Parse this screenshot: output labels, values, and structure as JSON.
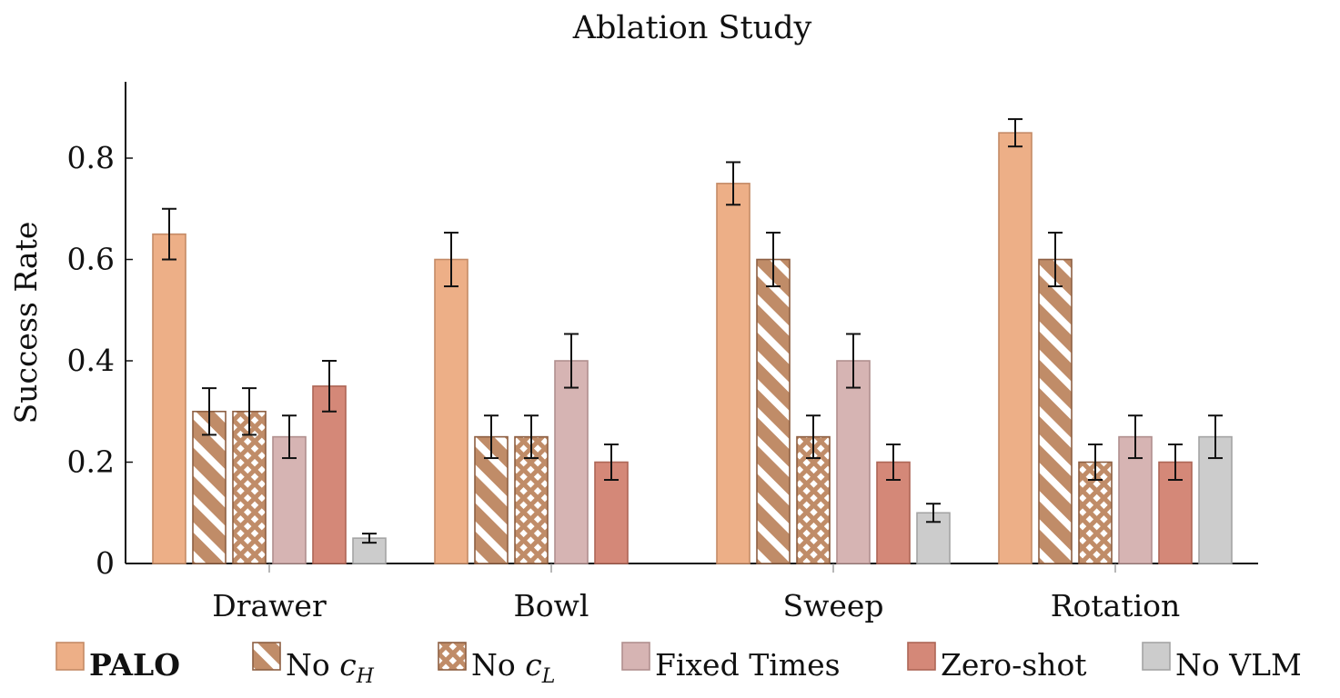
{
  "chart_data": {
    "type": "bar",
    "title": "Ablation Study",
    "xlabel": "",
    "ylabel": "Success Rate",
    "ylim": [
      0,
      0.92
    ],
    "yticks": [
      0,
      0.2,
      0.4,
      0.6,
      0.8
    ],
    "ytick_labels": [
      "0",
      "0.2",
      "0.4",
      "0.6",
      "0.8"
    ],
    "grid": false,
    "legend_position": "bottom",
    "categories": [
      "Drawer",
      "Bowl",
      "Sweep",
      "Rotation"
    ],
    "series": [
      {
        "name": "PALO",
        "color": "#edaf87",
        "stroke": "#c48a66",
        "pattern": "solid",
        "values": [
          0.65,
          0.6,
          0.75,
          0.85
        ],
        "errors": [
          0.05,
          0.053,
          0.042,
          0.027
        ]
      },
      {
        "name": "No c_H",
        "color": "#c08c68",
        "stroke": "#8d5f42",
        "pattern": "diagonal-stripes",
        "values": [
          0.3,
          0.25,
          0.6,
          0.6
        ],
        "errors": [
          0.046,
          0.042,
          0.053,
          0.053
        ]
      },
      {
        "name": "No c_L",
        "color": "#c08c68",
        "stroke": "#8d5f42",
        "pattern": "crosshatch",
        "values": [
          0.3,
          0.25,
          0.25,
          0.2
        ],
        "errors": [
          0.046,
          0.042,
          0.042,
          0.035
        ]
      },
      {
        "name": "Fixed Times",
        "color": "#d6b4b3",
        "stroke": "#b08f8e",
        "pattern": "solid",
        "values": [
          0.25,
          0.4,
          0.4,
          0.25
        ],
        "errors": [
          0.042,
          0.053,
          0.053,
          0.042
        ]
      },
      {
        "name": "Zero-shot",
        "color": "#d48878",
        "stroke": "#ad6656",
        "pattern": "solid",
        "values": [
          0.35,
          0.2,
          0.2,
          0.2
        ],
        "errors": [
          0.05,
          0.035,
          0.035,
          0.035
        ]
      },
      {
        "name": "No VLM",
        "color": "#cccccc",
        "stroke": "#a4a4a4",
        "pattern": "solid",
        "values": [
          0.05,
          0,
          0.1,
          0.25
        ],
        "errors": [
          0.009,
          0,
          0.018,
          0.042
        ]
      }
    ],
    "legend": [
      {
        "main": "PALO",
        "sub": "",
        "style": "bold"
      },
      {
        "main": "No ",
        "sub": "H",
        "var": "c",
        "style": "sub"
      },
      {
        "main": "No ",
        "sub": "L",
        "var": "c",
        "style": "sub"
      },
      {
        "main": "Fixed Times",
        "sub": "",
        "style": "plain"
      },
      {
        "main": "Zero-shot",
        "sub": "",
        "style": "plain"
      },
      {
        "main": "No VLM",
        "sub": "",
        "style": "plain"
      }
    ]
  }
}
